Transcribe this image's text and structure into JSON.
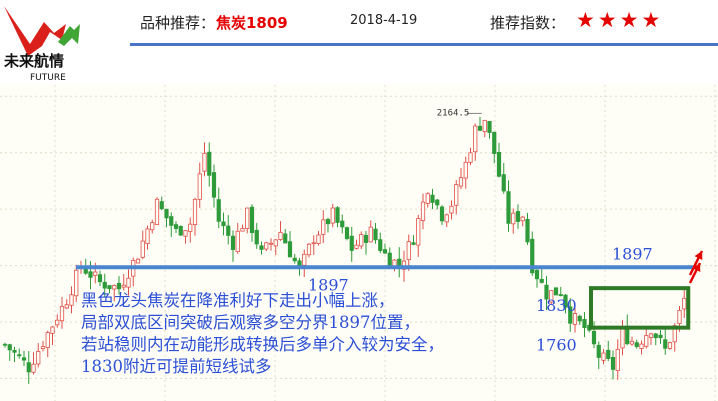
{
  "header": {
    "product_label": "品种推荐：",
    "product_name": "焦炭1809",
    "date": "2018-4-19",
    "rating_label": "推荐指数：",
    "rating": 4,
    "stars": "★★★★",
    "star_color": "#e60000",
    "accent": "#4a74c9"
  },
  "logo": {
    "cn": "未来航情",
    "en": "FUTURE"
  },
  "chart_data": {
    "type": "candlestick",
    "title": "",
    "xlabel": "",
    "ylabel": "",
    "ylim": [
      1660,
      2220
    ],
    "grid": true,
    "up_color": "#e0504a",
    "down_color": "#2e9b3a",
    "anchors": [
      [
        0,
        1760
      ],
      [
        5,
        1720
      ],
      [
        9,
        1780
      ],
      [
        13,
        1840
      ],
      [
        16,
        1900
      ],
      [
        20,
        1870
      ],
      [
        24,
        1860
      ],
      [
        28,
        1920
      ],
      [
        32,
        2010
      ],
      [
        36,
        1960
      ],
      [
        39,
        1975
      ],
      [
        42,
        2100
      ],
      [
        45,
        1980
      ],
      [
        48,
        1940
      ],
      [
        51,
        1990
      ],
      [
        54,
        1920
      ],
      [
        58,
        1960
      ],
      [
        62,
        1890
      ],
      [
        65,
        1950
      ],
      [
        69,
        1990
      ],
      [
        73,
        1930
      ],
      [
        77,
        1960
      ],
      [
        80,
        1920
      ],
      [
        83,
        1900
      ],
      [
        86,
        1950
      ],
      [
        89,
        2040
      ],
      [
        92,
        1990
      ],
      [
        94,
        2010
      ],
      [
        97,
        2080
      ],
      [
        99,
        2140
      ],
      [
        101,
        2160
      ],
      [
        103,
        2100
      ],
      [
        106,
        1980
      ],
      [
        109,
        1990
      ],
      [
        111,
        1900
      ],
      [
        114,
        1850
      ],
      [
        117,
        1855
      ],
      [
        119,
        1810
      ],
      [
        122,
        1790
      ],
      [
        125,
        1740
      ],
      [
        128,
        1720
      ],
      [
        130,
        1780
      ],
      [
        133,
        1760
      ],
      [
        136,
        1790
      ],
      [
        139,
        1750
      ],
      [
        141,
        1790
      ],
      [
        143,
        1840
      ]
    ],
    "high_label": "2164.5",
    "support_level": 1897,
    "support_labels": [
      "1897",
      "1897"
    ],
    "level_labels": [
      {
        "text": "1830",
        "value": 1830
      },
      {
        "text": "1760",
        "value": 1760
      }
    ],
    "line_color": "#4a86d0",
    "box_color": "#2f7a26",
    "arrow_color": "#e60000"
  },
  "annotation": {
    "lines": [
      "黑色龙头焦炭在降准利好下走出小幅上涨，",
      "局部双底区间突破后观察多空分界1897位置，",
      "若站稳则内在动能形成转换后多单介入较为安全，",
      "1830附近可提前短线试多"
    ],
    "color": "#2b4fd6"
  }
}
